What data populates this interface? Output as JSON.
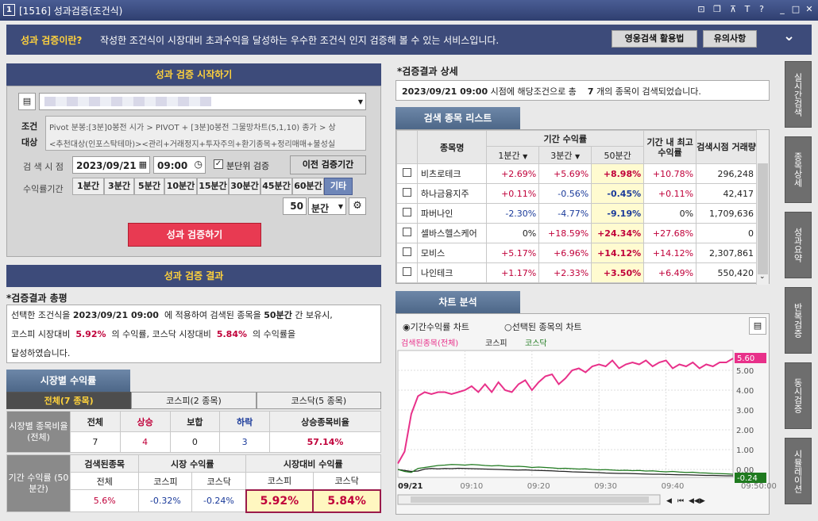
{
  "window": {
    "number": "1",
    "title": "[1516] 성과검증(조건식)",
    "controls": [
      "⊡",
      "❐",
      "⊼",
      "T",
      "?",
      "_",
      "□",
      "✕"
    ]
  },
  "banner": {
    "heading": "성과 검증이란?",
    "text": "작성한 조건식이 시장대비 초과수익을 달성하는 우수한 조건식 인지 검증해 볼 수 있는 서비스입니다.",
    "btn1": "영웅검색 활용법",
    "btn2": "유의사항",
    "chevron": "⌄"
  },
  "start": {
    "header": "성과 검증 시작하기",
    "condition_label": "조건",
    "target_label": "대상",
    "condition_text": "Pivot 분봉:[3분]0봉전 시가 > PIVOT + [3분]0봉전 그물망차트(5,1,10) 종가 > 상",
    "target_text": "<추천대상(인포스탁테마)><관리+거래정지+투자주의+환기종목+정리매매+불성실",
    "time_label": "검 색 시 점",
    "date": "2023/09/21",
    "time": "09:00",
    "chk_label": "분단위 검증",
    "prev_btn": "이전 검증기간",
    "period_label": "수익률기간",
    "periods": [
      "1분간",
      "3분간",
      "5분간",
      "10분간",
      "15분간",
      "30분간",
      "45분간",
      "60분간",
      "기타"
    ],
    "custom_value": "50",
    "custom_unit": "분간",
    "run_btn": "성과 검증하기"
  },
  "result": {
    "header": "성과 검증 결과",
    "summary_title": "*검증결과 총평",
    "s1": "선택한 조건식을",
    "s_date": "2023/09/21 09:00",
    "s2": "에 적용하여 검색된 종목을",
    "s_period": "50분간",
    "s3": "간 보유시,",
    "s4": "코스피 시장대비",
    "s_kospi": "5.92%",
    "s5": "의 수익률, 코스닥 시장대비",
    "s_kosdaq": "5.84%",
    "s6": "의 수익률을",
    "s7": "달성하였습니다."
  },
  "market": {
    "tab": "시장별 수익률",
    "subtabs": [
      "전체(7 종목)",
      "코스피(2 종목)",
      "코스닥(5 종목)"
    ],
    "ratio_label": "시장별 종목비율 (전체)",
    "ratio_heads": [
      "전체",
      "상승",
      "보합",
      "하락",
      "상승종목비율"
    ],
    "ratio_vals": [
      "7",
      "4",
      "0",
      "3",
      "57.14%"
    ],
    "period_label": "기간 수익률 (50분간)",
    "ret_heads": [
      "검색된종목",
      "시장 수익률",
      "시장대비 수익률"
    ],
    "ret_sub": [
      "전체",
      "코스피",
      "코스닥",
      "코스피",
      "코스닥"
    ],
    "ret_vals": [
      "5.6%",
      "-0.32%",
      "-0.24%",
      "5.92%",
      "5.84%"
    ]
  },
  "detail": {
    "title": "*검증결과 상세",
    "d_date": "2023/09/21 09:00",
    "d1": "시점에 해당조건으로 총",
    "d_count": "7",
    "d2": "개의 종목이 검색되었습니다."
  },
  "list": {
    "tab": "검색 종목 리스트",
    "heads": {
      "name": "종목명",
      "period": "기간 수익률",
      "p1": "1분간",
      "p3": "3분간",
      "p50": "50분간",
      "max": "기간 내 최고수익률",
      "vol": "검색시점 거래량"
    },
    "rows": [
      {
        "name": "비츠로테크",
        "p1": "+2.69%",
        "p3": "+5.69%",
        "p50": "+8.98%",
        "max": "+10.78%",
        "vol": "296,248"
      },
      {
        "name": "하나금융지주",
        "p1": "+0.11%",
        "p3": "-0.56%",
        "p50": "-0.45%",
        "max": "+0.11%",
        "vol": "42,417"
      },
      {
        "name": "파버나인",
        "p1": "-2.30%",
        "p3": "-4.77%",
        "p50": "-9.19%",
        "max": "0%",
        "vol": "1,709,636"
      },
      {
        "name": "셀바스헬스케어",
        "p1": "0%",
        "p3": "+18.59%",
        "p50": "+24.34%",
        "max": "+27.68%",
        "vol": "0"
      },
      {
        "name": "모비스",
        "p1": "+5.17%",
        "p3": "+6.96%",
        "p50": "+14.12%",
        "max": "+14.12%",
        "vol": "2,307,861"
      },
      {
        "name": "나인테크",
        "p1": "+1.17%",
        "p3": "+2.33%",
        "p50": "+3.50%",
        "max": "+6.49%",
        "vol": "550,420"
      }
    ]
  },
  "chart": {
    "tab": "차트 분석",
    "radio1": "기간수익률 차트",
    "radio2": "선택된 종목의 차트",
    "legend": [
      "검색된종목(전체)",
      "코스피",
      "코스닥"
    ],
    "colors": {
      "stock": "#e8318a",
      "kospi": "#222222",
      "kosdaq": "#1f7a1f"
    },
    "tag_stock": "5.60",
    "tag_kosdaq": "-0.24",
    "xlabels": [
      "09/21",
      "09:10",
      "09:20",
      "09:30",
      "09:40",
      "09:50:00"
    ],
    "ylabels": [
      "5.00",
      "4.00",
      "3.00",
      "2.00",
      "1.00",
      "0.00"
    ]
  },
  "chart_data": {
    "type": "line",
    "x": [
      0,
      1,
      2,
      3,
      4,
      5,
      6,
      7,
      8,
      9,
      10,
      11,
      12,
      13,
      14,
      15,
      16,
      17,
      18,
      19,
      20,
      21,
      22,
      23,
      24,
      25,
      26,
      27,
      28,
      29,
      30,
      31,
      32,
      33,
      34,
      35,
      36,
      37,
      38,
      39,
      40,
      41,
      42,
      43,
      44,
      45,
      46,
      47,
      48,
      49,
      50
    ],
    "series": [
      {
        "name": "검색된종목(전체)",
        "values": [
          0.3,
          0.9,
          2.8,
          3.7,
          3.9,
          3.8,
          3.9,
          3.9,
          3.8,
          3.9,
          4.0,
          4.2,
          3.9,
          4.3,
          3.9,
          4.4,
          4.0,
          3.9,
          4.3,
          4.5,
          4.0,
          4.4,
          4.7,
          4.8,
          4.3,
          4.6,
          5.0,
          5.1,
          4.9,
          5.2,
          5.3,
          5.2,
          5.5,
          5.1,
          5.3,
          5.4,
          5.3,
          5.5,
          5.2,
          5.4,
          5.5,
          5.1,
          5.3,
          5.2,
          5.4,
          5.1,
          5.3,
          5.2,
          5.4,
          5.4,
          5.6
        ]
      },
      {
        "name": "코스피",
        "values": [
          0,
          -0.05,
          -0.1,
          -0.08,
          0.02,
          0.05,
          0.03,
          0.05,
          0.04,
          0.06,
          0.05,
          0.04,
          0.03,
          0.02,
          0.01,
          0,
          -0.01,
          -0.02,
          -0.03,
          -0.02,
          -0.04,
          -0.05,
          -0.06,
          -0.07,
          -0.09,
          -0.1,
          -0.12,
          -0.13,
          -0.14,
          -0.15,
          -0.16,
          -0.18,
          -0.19,
          -0.2,
          -0.2,
          -0.21,
          -0.22,
          -0.23,
          -0.24,
          -0.24,
          -0.25,
          -0.26,
          -0.27,
          -0.27,
          -0.28,
          -0.29,
          -0.3,
          -0.3,
          -0.31,
          -0.32,
          -0.32
        ]
      },
      {
        "name": "코스닥",
        "values": [
          0,
          -0.1,
          -0.15,
          0.05,
          0.1,
          0.15,
          0.2,
          0.22,
          0.25,
          0.24,
          0.22,
          0.25,
          0.23,
          0.2,
          0.18,
          0.2,
          0.17,
          0.15,
          0.16,
          0.14,
          0.1,
          0.12,
          0.1,
          0.08,
          0.05,
          0.06,
          0.04,
          0.02,
          0.03,
          0,
          -0.02,
          -0.01,
          -0.03,
          -0.05,
          -0.04,
          -0.06,
          -0.05,
          -0.08,
          -0.07,
          -0.1,
          -0.12,
          -0.1,
          -0.13,
          -0.15,
          -0.14,
          -0.17,
          -0.18,
          -0.2,
          -0.21,
          -0.22,
          -0.24
        ]
      }
    ],
    "ylim": [
      -0.4,
      6.0
    ]
  },
  "side_tabs": [
    "실시간검색",
    "종목상세",
    "성과요약",
    "반복검증",
    "동시검증",
    "시뮬레이션"
  ]
}
